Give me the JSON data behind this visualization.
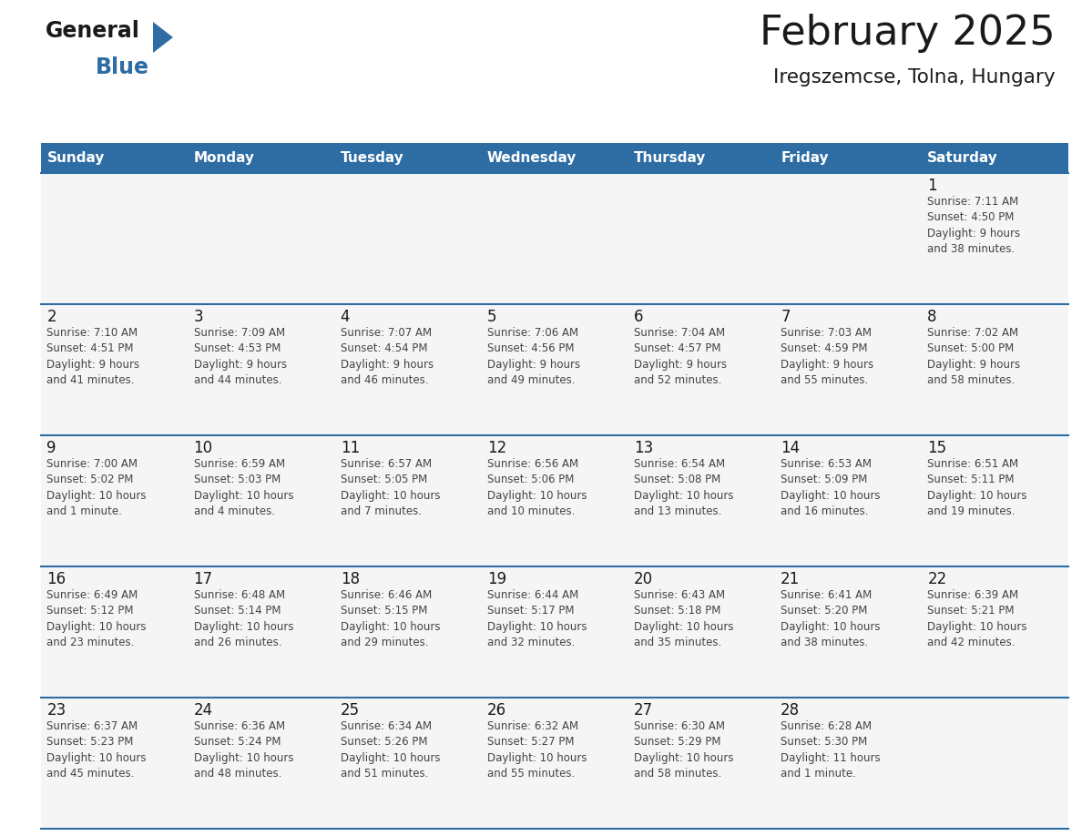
{
  "title": "February 2025",
  "subtitle": "Iregszemcse, Tolna, Hungary",
  "header_bg": "#2E6DA4",
  "header_text_color": "#FFFFFF",
  "cell_bg": "#F5F5F5",
  "border_color": "#2E6DA4",
  "text_color": "#333333",
  "days_of_week": [
    "Sunday",
    "Monday",
    "Tuesday",
    "Wednesday",
    "Thursday",
    "Friday",
    "Saturday"
  ],
  "calendar": [
    [
      null,
      null,
      null,
      null,
      null,
      null,
      {
        "day": "1",
        "sunrise": "7:11 AM",
        "sunset": "4:50 PM",
        "daylight": "9 hours\nand 38 minutes."
      }
    ],
    [
      {
        "day": "2",
        "sunrise": "7:10 AM",
        "sunset": "4:51 PM",
        "daylight": "9 hours\nand 41 minutes."
      },
      {
        "day": "3",
        "sunrise": "7:09 AM",
        "sunset": "4:53 PM",
        "daylight": "9 hours\nand 44 minutes."
      },
      {
        "day": "4",
        "sunrise": "7:07 AM",
        "sunset": "4:54 PM",
        "daylight": "9 hours\nand 46 minutes."
      },
      {
        "day": "5",
        "sunrise": "7:06 AM",
        "sunset": "4:56 PM",
        "daylight": "9 hours\nand 49 minutes."
      },
      {
        "day": "6",
        "sunrise": "7:04 AM",
        "sunset": "4:57 PM",
        "daylight": "9 hours\nand 52 minutes."
      },
      {
        "day": "7",
        "sunrise": "7:03 AM",
        "sunset": "4:59 PM",
        "daylight": "9 hours\nand 55 minutes."
      },
      {
        "day": "8",
        "sunrise": "7:02 AM",
        "sunset": "5:00 PM",
        "daylight": "9 hours\nand 58 minutes."
      }
    ],
    [
      {
        "day": "9",
        "sunrise": "7:00 AM",
        "sunset": "5:02 PM",
        "daylight": "10 hours\nand 1 minute."
      },
      {
        "day": "10",
        "sunrise": "6:59 AM",
        "sunset": "5:03 PM",
        "daylight": "10 hours\nand 4 minutes."
      },
      {
        "day": "11",
        "sunrise": "6:57 AM",
        "sunset": "5:05 PM",
        "daylight": "10 hours\nand 7 minutes."
      },
      {
        "day": "12",
        "sunrise": "6:56 AM",
        "sunset": "5:06 PM",
        "daylight": "10 hours\nand 10 minutes."
      },
      {
        "day": "13",
        "sunrise": "6:54 AM",
        "sunset": "5:08 PM",
        "daylight": "10 hours\nand 13 minutes."
      },
      {
        "day": "14",
        "sunrise": "6:53 AM",
        "sunset": "5:09 PM",
        "daylight": "10 hours\nand 16 minutes."
      },
      {
        "day": "15",
        "sunrise": "6:51 AM",
        "sunset": "5:11 PM",
        "daylight": "10 hours\nand 19 minutes."
      }
    ],
    [
      {
        "day": "16",
        "sunrise": "6:49 AM",
        "sunset": "5:12 PM",
        "daylight": "10 hours\nand 23 minutes."
      },
      {
        "day": "17",
        "sunrise": "6:48 AM",
        "sunset": "5:14 PM",
        "daylight": "10 hours\nand 26 minutes."
      },
      {
        "day": "18",
        "sunrise": "6:46 AM",
        "sunset": "5:15 PM",
        "daylight": "10 hours\nand 29 minutes."
      },
      {
        "day": "19",
        "sunrise": "6:44 AM",
        "sunset": "5:17 PM",
        "daylight": "10 hours\nand 32 minutes."
      },
      {
        "day": "20",
        "sunrise": "6:43 AM",
        "sunset": "5:18 PM",
        "daylight": "10 hours\nand 35 minutes."
      },
      {
        "day": "21",
        "sunrise": "6:41 AM",
        "sunset": "5:20 PM",
        "daylight": "10 hours\nand 38 minutes."
      },
      {
        "day": "22",
        "sunrise": "6:39 AM",
        "sunset": "5:21 PM",
        "daylight": "10 hours\nand 42 minutes."
      }
    ],
    [
      {
        "day": "23",
        "sunrise": "6:37 AM",
        "sunset": "5:23 PM",
        "daylight": "10 hours\nand 45 minutes."
      },
      {
        "day": "24",
        "sunrise": "6:36 AM",
        "sunset": "5:24 PM",
        "daylight": "10 hours\nand 48 minutes."
      },
      {
        "day": "25",
        "sunrise": "6:34 AM",
        "sunset": "5:26 PM",
        "daylight": "10 hours\nand 51 minutes."
      },
      {
        "day": "26",
        "sunrise": "6:32 AM",
        "sunset": "5:27 PM",
        "daylight": "10 hours\nand 55 minutes."
      },
      {
        "day": "27",
        "sunrise": "6:30 AM",
        "sunset": "5:29 PM",
        "daylight": "10 hours\nand 58 minutes."
      },
      {
        "day": "28",
        "sunrise": "6:28 AM",
        "sunset": "5:30 PM",
        "daylight": "11 hours\nand 1 minute."
      },
      null
    ]
  ]
}
